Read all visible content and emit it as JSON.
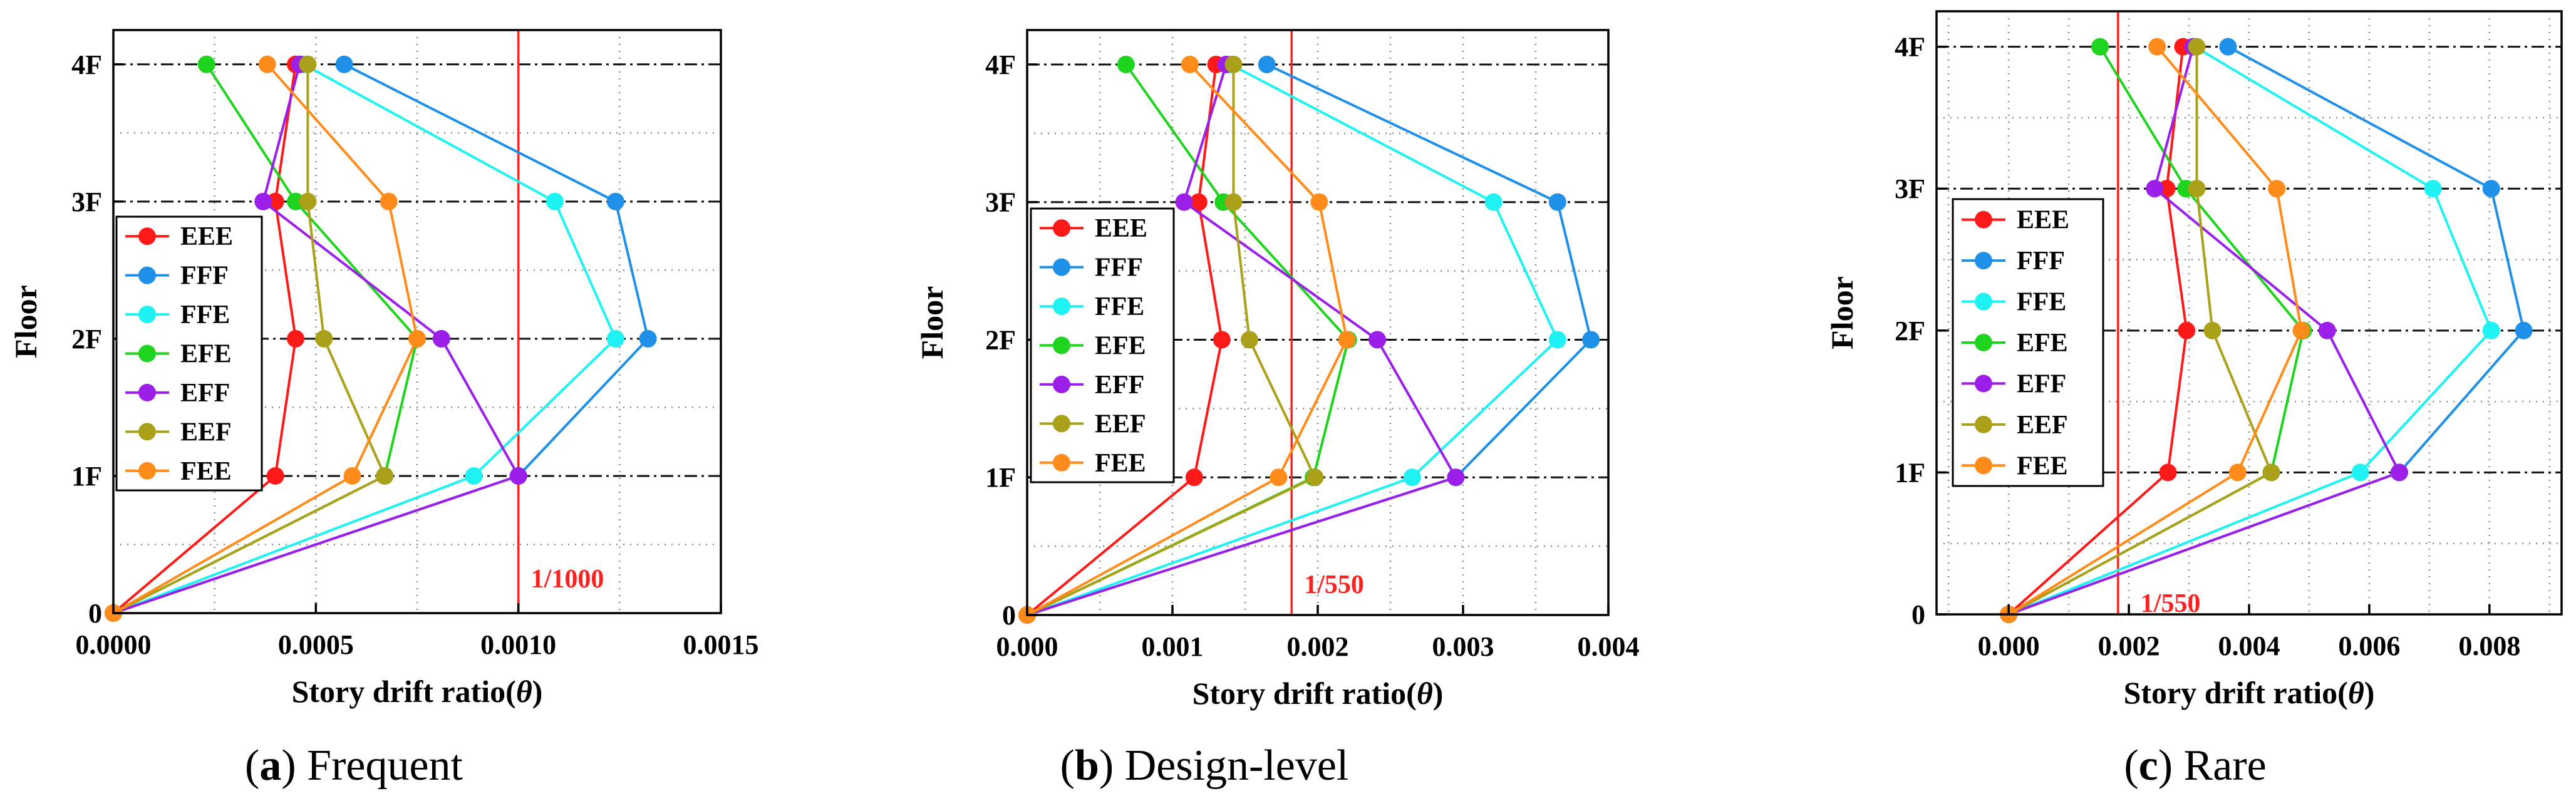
{
  "colors": {
    "EEE": "#ff1a1a",
    "FFF": "#1e90e8",
    "FFE": "#1ff2f2",
    "EFE": "#1fd41f",
    "EFF": "#9b1fe8",
    "EEF": "#aaa01a",
    "FEE": "#ff8c1a",
    "limit": "#ff2020"
  },
  "chart_data": [
    {
      "type": "line",
      "panel": "a",
      "caption": {
        "letter": "a",
        "paren_open": "(",
        "paren_close": ")",
        "text": " Frequent"
      },
      "xlabel": "Story drift ratio(θ)",
      "xlabel_main": "Story drift ratio(",
      "xlabel_symbol": "θ",
      "xlabel_close": ")",
      "ylabel": "Floor",
      "xlim": [
        0,
        0.0015
      ],
      "ylim": [
        0,
        4.25
      ],
      "xticks": [
        0,
        0.0005,
        0.001,
        0.0015
      ],
      "xtick_labels": [
        "0.0000",
        "0.0005",
        "0.0010",
        "0.0015"
      ],
      "yticks": [
        0,
        1,
        2,
        3,
        4
      ],
      "ytick_labels": [
        "0",
        "1F",
        "2F",
        "3F",
        "4F"
      ],
      "limit": {
        "value": 0.001,
        "label": "1/1000"
      },
      "series": [
        {
          "name": "EEE",
          "x": [
            0,
            0.0004,
            0.00045,
            0.0004,
            0.00045
          ],
          "y": [
            0,
            1,
            2,
            3,
            4
          ]
        },
        {
          "name": "FFF",
          "x": [
            0,
            0.001,
            0.00132,
            0.00124,
            0.00057
          ],
          "y": [
            0,
            1,
            2,
            3,
            4
          ]
        },
        {
          "name": "FFE",
          "x": [
            0,
            0.00089,
            0.00124,
            0.00109,
            0.00047
          ],
          "y": [
            0,
            1,
            2,
            3,
            4
          ]
        },
        {
          "name": "EFE",
          "x": [
            0,
            0.00067,
            0.00075,
            0.00045,
            0.00023
          ],
          "y": [
            0,
            1,
            2,
            3,
            4
          ]
        },
        {
          "name": "EFF",
          "x": [
            0,
            0.001,
            0.00081,
            0.00037,
            0.00046
          ],
          "y": [
            0,
            1,
            2,
            3,
            4
          ]
        },
        {
          "name": "EEF",
          "x": [
            0,
            0.00067,
            0.00052,
            0.00048,
            0.00048
          ],
          "y": [
            0,
            1,
            2,
            3,
            4
          ]
        },
        {
          "name": "FEE",
          "x": [
            0,
            0.00059,
            0.00075,
            0.00068,
            0.00038
          ],
          "y": [
            0,
            1,
            2,
            3,
            4
          ]
        }
      ]
    },
    {
      "type": "line",
      "panel": "b",
      "caption": {
        "letter": "b",
        "paren_open": "(",
        "paren_close": ")",
        "text": " Design-level"
      },
      "xlabel": "Story drift ratio(θ)",
      "xlabel_main": "Story drift ratio(",
      "xlabel_symbol": "θ",
      "xlabel_close": ")",
      "ylabel": "Floor",
      "xlim": [
        0,
        0.004
      ],
      "ylim": [
        0,
        4.25
      ],
      "xticks": [
        0,
        0.001,
        0.002,
        0.003,
        0.004
      ],
      "xtick_labels": [
        "0.000",
        "0.001",
        "0.002",
        "0.003",
        "0.004"
      ],
      "yticks": [
        0,
        1,
        2,
        3,
        4
      ],
      "ytick_labels": [
        "0",
        "1F",
        "2F",
        "3F",
        "4F"
      ],
      "limit": {
        "value": 0.00182,
        "label": "1/550"
      },
      "series": [
        {
          "name": "EEE",
          "x": [
            0,
            0.00115,
            0.00134,
            0.00118,
            0.0013
          ],
          "y": [
            0,
            1,
            2,
            3,
            4
          ]
        },
        {
          "name": "FFF",
          "x": [
            0,
            0.00295,
            0.00388,
            0.00365,
            0.00165
          ],
          "y": [
            0,
            1,
            2,
            3,
            4
          ]
        },
        {
          "name": "FFE",
          "x": [
            0,
            0.00265,
            0.00365,
            0.00321,
            0.0014
          ],
          "y": [
            0,
            1,
            2,
            3,
            4
          ]
        },
        {
          "name": "EFE",
          "x": [
            0,
            0.00197,
            0.00221,
            0.00135,
            0.00068
          ],
          "y": [
            0,
            1,
            2,
            3,
            4
          ]
        },
        {
          "name": "EFF",
          "x": [
            0,
            0.00295,
            0.00241,
            0.00108,
            0.00137
          ],
          "y": [
            0,
            1,
            2,
            3,
            4
          ]
        },
        {
          "name": "EEF",
          "x": [
            0,
            0.00198,
            0.00153,
            0.00142,
            0.00142
          ],
          "y": [
            0,
            1,
            2,
            3,
            4
          ]
        },
        {
          "name": "FEE",
          "x": [
            0,
            0.00173,
            0.0022,
            0.00201,
            0.00112
          ],
          "y": [
            0,
            1,
            2,
            3,
            4
          ]
        }
      ]
    },
    {
      "type": "line",
      "panel": "c",
      "caption": {
        "letter": "c",
        "paren_open": "(",
        "paren_close": ")",
        "text": " Rare"
      },
      "xlabel": "Story drift ratio(θ)",
      "xlabel_main": "Story drift ratio(",
      "xlabel_symbol": "θ",
      "xlabel_close": ")",
      "ylabel": "Floor",
      "xlim": [
        -0.0012,
        0.0092
      ],
      "ylim": [
        0,
        4.25
      ],
      "xticks": [
        0,
        0.002,
        0.004,
        0.006,
        0.008
      ],
      "xtick_labels": [
        "0.000",
        "0.002",
        "0.004",
        "0.006",
        "0.008"
      ],
      "yticks": [
        0,
        1,
        2,
        3,
        4
      ],
      "ytick_labels": [
        "0",
        "1F",
        "2F",
        "3F",
        "4F"
      ],
      "limit": {
        "value": 0.00182,
        "label": "1/550"
      },
      "series": [
        {
          "name": "EEE",
          "x": [
            0,
            0.00265,
            0.00296,
            0.00263,
            0.0029
          ],
          "y": [
            0,
            1,
            2,
            3,
            4
          ]
        },
        {
          "name": "FFF",
          "x": [
            0,
            0.0065,
            0.00857,
            0.00803,
            0.00365
          ],
          "y": [
            0,
            1,
            2,
            3,
            4
          ]
        },
        {
          "name": "FFE",
          "x": [
            0,
            0.00585,
            0.00803,
            0.00706,
            0.0031
          ],
          "y": [
            0,
            1,
            2,
            3,
            4
          ]
        },
        {
          "name": "EFE",
          "x": [
            0,
            0.00437,
            0.0049,
            0.00295,
            0.00152
          ],
          "y": [
            0,
            1,
            2,
            3,
            4
          ]
        },
        {
          "name": "EFF",
          "x": [
            0,
            0.0065,
            0.0053,
            0.00243,
            0.00307
          ],
          "y": [
            0,
            1,
            2,
            3,
            4
          ]
        },
        {
          "name": "EEF",
          "x": [
            0,
            0.00437,
            0.00339,
            0.00313,
            0.00313
          ],
          "y": [
            0,
            1,
            2,
            3,
            4
          ]
        },
        {
          "name": "FEE",
          "x": [
            0,
            0.00381,
            0.00487,
            0.00446,
            0.00247
          ],
          "y": [
            0,
            1,
            2,
            3,
            4
          ]
        }
      ]
    }
  ]
}
